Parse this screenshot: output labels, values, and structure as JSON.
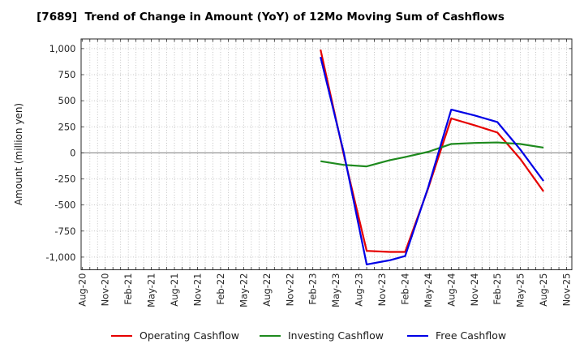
{
  "title": "[7689]  Trend of Change in Amount (YoY) of 12Mo Moving Sum of Cashflows",
  "y_axis": {
    "label": "Amount (million yen)",
    "tick_labels": [
      "1,000",
      "750",
      "500",
      "250",
      "0",
      "-250",
      "-500",
      "-750",
      "-1,000"
    ],
    "tick_values": [
      1000,
      750,
      500,
      250,
      0,
      -250,
      -500,
      -750,
      -1000
    ]
  },
  "x_axis": {
    "tick_labels": [
      "Aug-20",
      "Nov-20",
      "Feb-21",
      "May-21",
      "Aug-21",
      "Nov-21",
      "Feb-22",
      "May-22",
      "Aug-22",
      "Nov-22",
      "Feb-23",
      "May-23",
      "Aug-23",
      "Nov-23",
      "Feb-24",
      "May-24",
      "Aug-24",
      "Nov-24",
      "Feb-25",
      "May-25",
      "Aug-25",
      "Nov-25"
    ]
  },
  "legend": {
    "items": [
      {
        "label": "Operating Cashflow",
        "color": "#e60000"
      },
      {
        "label": "Investing Cashflow",
        "color": "#1e8a1e"
      },
      {
        "label": "Free Cashflow",
        "color": "#0000e6"
      }
    ]
  },
  "chart_data": {
    "type": "line",
    "title": "[7689]  Trend of Change in Amount (YoY) of 12Mo Moving Sum of Cashflows",
    "xlabel": "",
    "ylabel": "Amount (million yen)",
    "ylim": [
      -1121,
      1093
    ],
    "x_axis_range": [
      "Aug-20",
      "Nov-25"
    ],
    "grid": true,
    "legend_position": "bottom",
    "x": [
      "Mar-23",
      "Jun-23",
      "Sep-23",
      "Dec-23",
      "Feb-24",
      "May-24",
      "Aug-24",
      "Nov-24",
      "Feb-25",
      "May-25",
      "Aug-25"
    ],
    "x_months_since_aug20": [
      31,
      34,
      37,
      40,
      42,
      45,
      48,
      51,
      54,
      57,
      60
    ],
    "series": [
      {
        "name": "Operating Cashflow",
        "color": "#e60000",
        "values": [
          990,
          -10,
          -940,
          -950,
          -950,
          -340,
          330,
          265,
          195,
          -60,
          -370
        ]
      },
      {
        "name": "Investing Cashflow",
        "color": "#1e8a1e",
        "values": [
          -80,
          -115,
          -130,
          -70,
          -40,
          10,
          85,
          95,
          100,
          85,
          50
        ]
      },
      {
        "name": "Free Cashflow",
        "color": "#0000e6",
        "values": [
          920,
          10,
          -1070,
          -1030,
          -990,
          -330,
          415,
          360,
          295,
          30,
          -270
        ]
      }
    ]
  }
}
